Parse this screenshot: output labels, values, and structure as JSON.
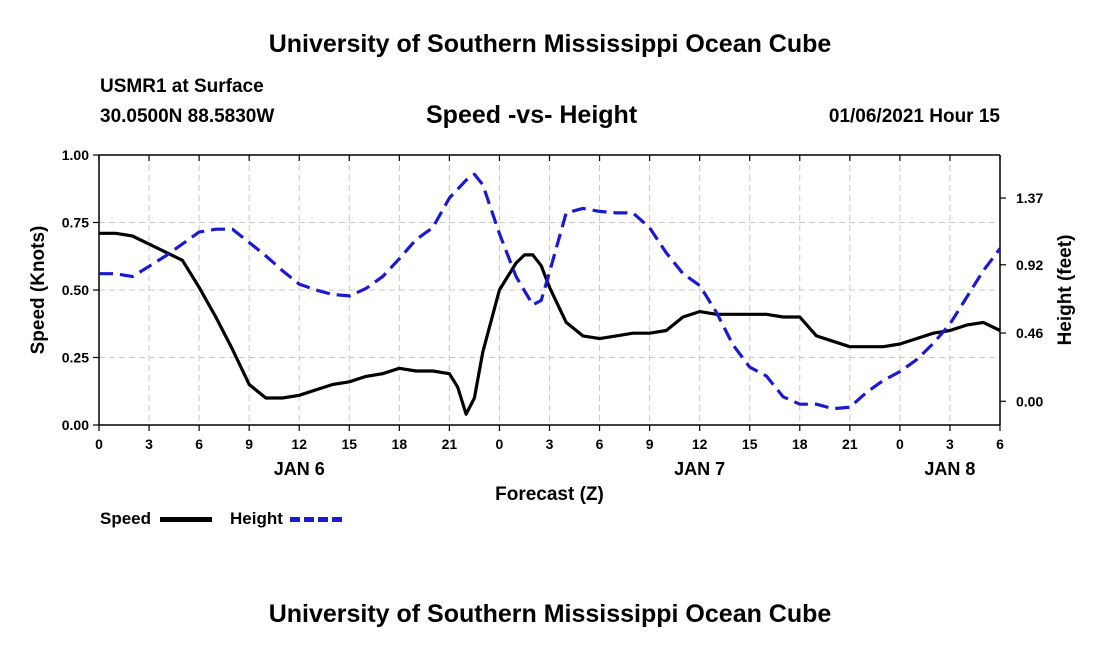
{
  "page": {
    "top_title": "University of Southern Mississippi Ocean Cube",
    "bottom_title": "University of Southern Mississippi Ocean Cube",
    "station_name": "USMR1 at Surface",
    "coordinates": "30.0500N 88.5830W",
    "subtitle": "Speed -vs- Height",
    "datetime": "01/06/2021 Hour 15"
  },
  "colors": {
    "speed": "#000000",
    "height": "#1a1ad0",
    "grid": "#c8c8c8"
  },
  "chart_data": {
    "type": "line",
    "title": "Speed -vs- Height",
    "xlabel": "Forecast (Z)",
    "ylabel": "Speed (Knots)",
    "y2label": "Height (feet)",
    "x_unit": "hours since 00Z Jan 6",
    "xlim": [
      0,
      54
    ],
    "ylim": [
      0,
      1.0
    ],
    "y2lim": [
      -0.16,
      1.66
    ],
    "xticks": [
      0,
      3,
      6,
      9,
      12,
      15,
      18,
      21,
      24,
      27,
      30,
      33,
      36,
      39,
      42,
      45,
      48,
      51,
      54
    ],
    "xtick_labels": [
      "0",
      "3",
      "6",
      "9",
      "12",
      "15",
      "18",
      "21",
      "0",
      "3",
      "6",
      "9",
      "12",
      "15",
      "18",
      "21",
      "0",
      "3",
      "6"
    ],
    "yticks": [
      0.0,
      0.25,
      0.5,
      0.75,
      1.0
    ],
    "ytick_labels": [
      "0.00",
      "0.25",
      "0.50",
      "0.75",
      "1.00"
    ],
    "y2ticks": [
      0.0,
      0.46,
      0.92,
      1.37
    ],
    "y2tick_labels": [
      "0.00",
      "0.46",
      "0.92",
      "1.37"
    ],
    "day_labels": [
      {
        "x": 12,
        "label": "JAN 6"
      },
      {
        "x": 36,
        "label": "JAN 7"
      },
      {
        "x": 51,
        "label": "JAN 8"
      }
    ],
    "grid": true,
    "legend": "bottom-left",
    "series": [
      {
        "name": "Speed",
        "axis": "left",
        "style": "solid",
        "x": [
          0,
          1,
          2,
          3,
          4,
          5,
          6,
          7,
          8,
          9,
          10,
          11,
          12,
          13,
          14,
          15,
          16,
          17,
          18,
          19,
          20,
          21,
          21.5,
          22,
          22.5,
          23,
          24,
          25,
          25.5,
          26,
          26.5,
          27,
          28,
          29,
          30,
          31,
          32,
          33,
          34,
          35,
          36,
          37,
          38,
          39,
          40,
          41,
          42,
          43,
          44,
          45,
          46,
          47,
          48,
          49,
          50,
          51,
          52,
          53,
          54
        ],
        "values": [
          0.71,
          0.71,
          0.7,
          0.67,
          0.64,
          0.61,
          0.51,
          0.4,
          0.28,
          0.15,
          0.1,
          0.1,
          0.11,
          0.13,
          0.15,
          0.16,
          0.18,
          0.19,
          0.21,
          0.2,
          0.2,
          0.19,
          0.14,
          0.04,
          0.1,
          0.27,
          0.5,
          0.6,
          0.63,
          0.63,
          0.59,
          0.51,
          0.38,
          0.33,
          0.32,
          0.33,
          0.34,
          0.34,
          0.35,
          0.4,
          0.42,
          0.41,
          0.41,
          0.41,
          0.41,
          0.4,
          0.4,
          0.33,
          0.31,
          0.29,
          0.29,
          0.29,
          0.3,
          0.32,
          0.34,
          0.35,
          0.37,
          0.38,
          0.35
        ]
      },
      {
        "name": "Height",
        "axis": "right",
        "style": "dashed",
        "x": [
          0,
          1,
          2,
          3,
          4,
          5,
          6,
          7,
          8,
          9,
          10,
          11,
          12,
          13,
          14,
          15,
          16,
          17,
          18,
          19,
          20,
          21,
          22,
          22.5,
          23,
          24,
          25,
          26,
          26.5,
          27,
          28,
          29,
          30,
          31,
          32,
          33,
          34,
          35,
          36,
          37,
          38,
          39,
          40,
          41,
          42,
          43,
          44,
          45,
          46,
          47,
          48,
          49,
          50,
          51,
          52,
          53,
          54
        ],
        "values": [
          0.86,
          0.86,
          0.84,
          0.91,
          0.98,
          1.06,
          1.14,
          1.16,
          1.16,
          1.07,
          0.98,
          0.88,
          0.79,
          0.75,
          0.72,
          0.71,
          0.76,
          0.84,
          0.96,
          1.09,
          1.17,
          1.37,
          1.49,
          1.53,
          1.46,
          1.13,
          0.84,
          0.65,
          0.68,
          0.87,
          1.27,
          1.3,
          1.28,
          1.27,
          1.27,
          1.17,
          1.0,
          0.86,
          0.78,
          0.6,
          0.38,
          0.23,
          0.17,
          0.03,
          -0.02,
          -0.02,
          -0.05,
          -0.04,
          0.06,
          0.14,
          0.2,
          0.28,
          0.39,
          0.52,
          0.7,
          0.88,
          1.03
        ]
      }
    ]
  }
}
